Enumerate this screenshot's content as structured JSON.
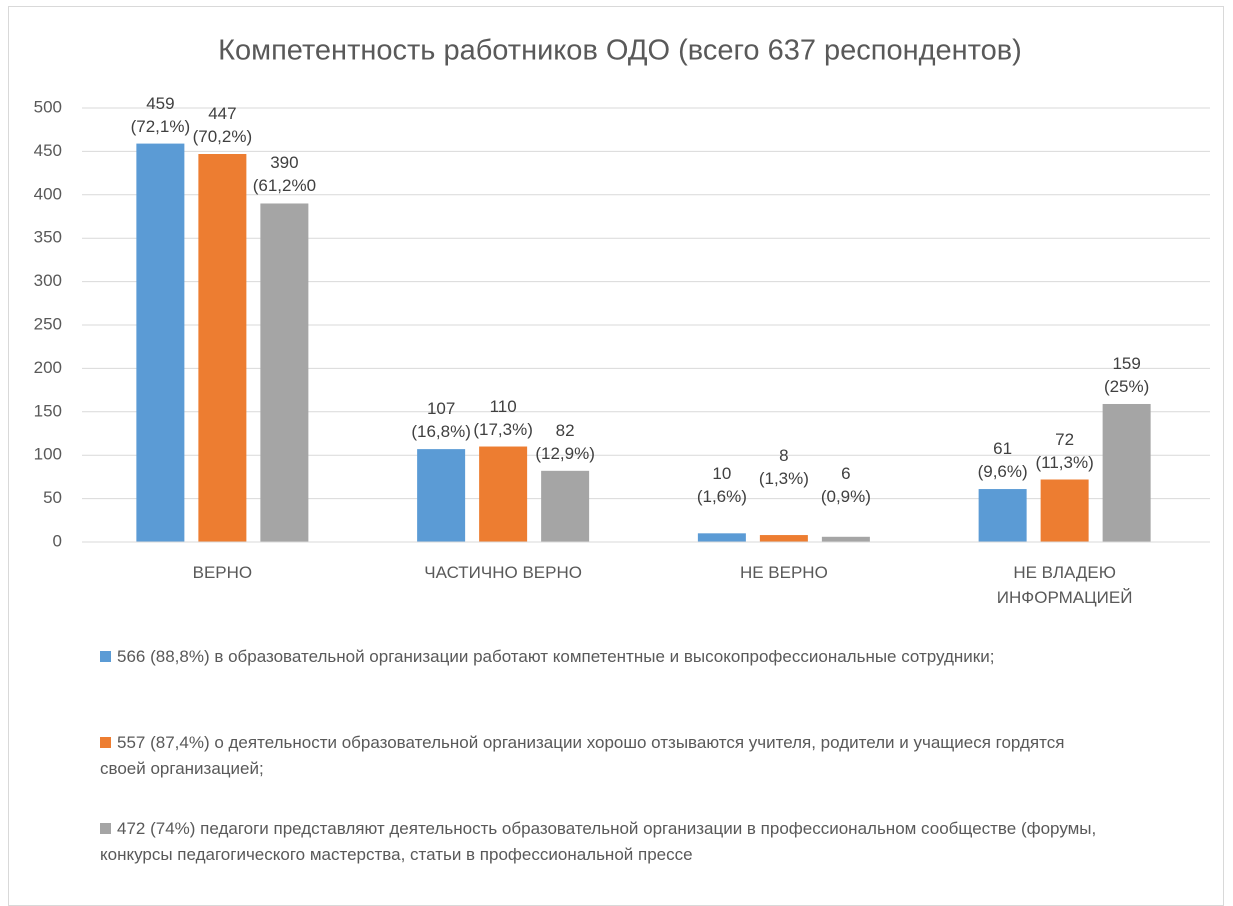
{
  "chart_data": {
    "type": "bar",
    "title": "Компетентность работников ОДО (всего 637 респондентов)",
    "categories": [
      "ВЕРНО",
      "ЧАСТИЧНО  ВЕРНО",
      "НЕ ВЕРНО",
      "НЕ ВЛАДЕЮ ИНФОРМАЦИЕЙ"
    ],
    "series": [
      {
        "name": "566 (88,8%) в образовательной организации работают компетентные и высокопрофессиональные сотрудники;",
        "color": "#5b9bd5",
        "values": [
          459,
          107,
          10,
          61
        ],
        "value_labels": [
          "459\n(72,1%)",
          "107\n(16,8%)",
          "10\n(1,6%)",
          "61\n(9,6%)"
        ]
      },
      {
        "name": "557 (87,4%) о деятельности образовательной организации хорошо отзываются учителя, родители и учащиеся гордятся своей организацией;",
        "color": "#ed7d31",
        "values": [
          447,
          110,
          8,
          72
        ],
        "value_labels": [
          "447\n(70,2%)",
          "110\n(17,3%)",
          "8\n(1,3%)",
          "72\n(11,3%)"
        ]
      },
      {
        "name": "472 (74%) педагоги представляют деятельность образовательной организации в профессиональном сообществе (форумы, конкурсы педагогического мастерства, статьи в профессиональной прессе",
        "color": "#a5a5a5",
        "values": [
          390,
          82,
          6,
          159
        ],
        "value_labels": [
          "390\n(61,2%0",
          "82\n(12,9%)",
          "6\n(0,9%)",
          "159\n(25%)"
        ]
      }
    ],
    "ylim": [
      0,
      500
    ],
    "yticks": [
      0,
      50,
      100,
      150,
      200,
      250,
      300,
      350,
      400,
      450,
      500
    ],
    "grid": true
  }
}
